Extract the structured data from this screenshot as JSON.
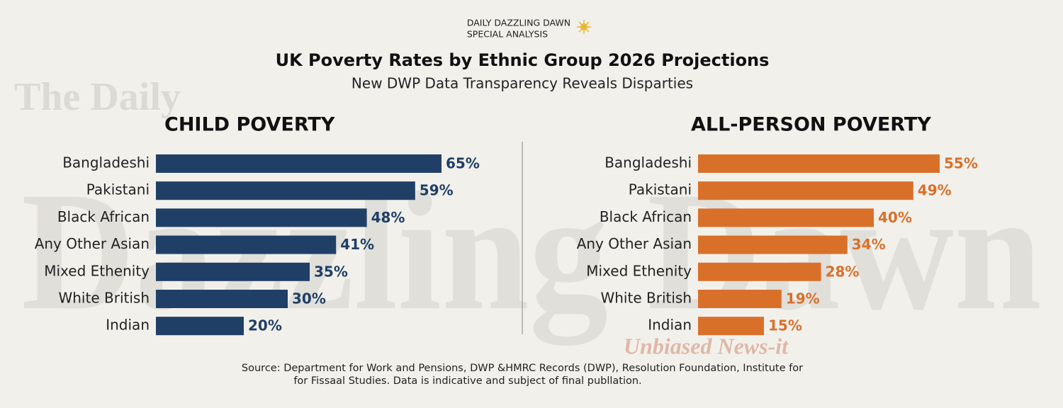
{
  "header": {
    "brand": "DAILY DAZZLING DAWN",
    "kicker": "SPECIAL ANALYSIS",
    "title": "UK Poverty Rates by Ethnic Group 2026 Projections",
    "subtitle": "New DWP Data Transparency Reveals Disparties"
  },
  "watermark": {
    "top": "The Daily",
    "main": "Dazzling Dawn",
    "tagline": "Unbiased News-it"
  },
  "chart_data": [
    {
      "type": "bar",
      "orientation": "horizontal",
      "title": "CHILD POVERTY",
      "categories": [
        "Bangladeshi",
        "Pakistani",
        "Black African",
        "Any Other Asian",
        "Mixed Ethenity",
        "White British",
        "Indian"
      ],
      "values": [
        65,
        59,
        48,
        41,
        35,
        30,
        20
      ],
      "value_labels": [
        "65%",
        "59%",
        "48%",
        "41%",
        "35%",
        "30%",
        "20%"
      ],
      "color": "#1f3f66"
    },
    {
      "type": "bar",
      "orientation": "horizontal",
      "title": "ALL-PERSON POVERTY",
      "categories": [
        "Bangladeshi",
        "Pakistani",
        "Black African",
        "Any Other Asian",
        "Mixed Ethenity",
        "White British",
        "Indian"
      ],
      "values": [
        55,
        49,
        40,
        34,
        28,
        19,
        15
      ],
      "value_labels": [
        "55%",
        "49%",
        "40%",
        "34%",
        "28%",
        "19%",
        "15%"
      ],
      "color": "#d9702a"
    }
  ],
  "source": [
    "Source: Department for Work and Pensions, DWP &HMRC Records (DWP), Resolution Foundation, Institute for",
    "for Fissaal Studies. Data is indicative and subject of final publlation."
  ]
}
